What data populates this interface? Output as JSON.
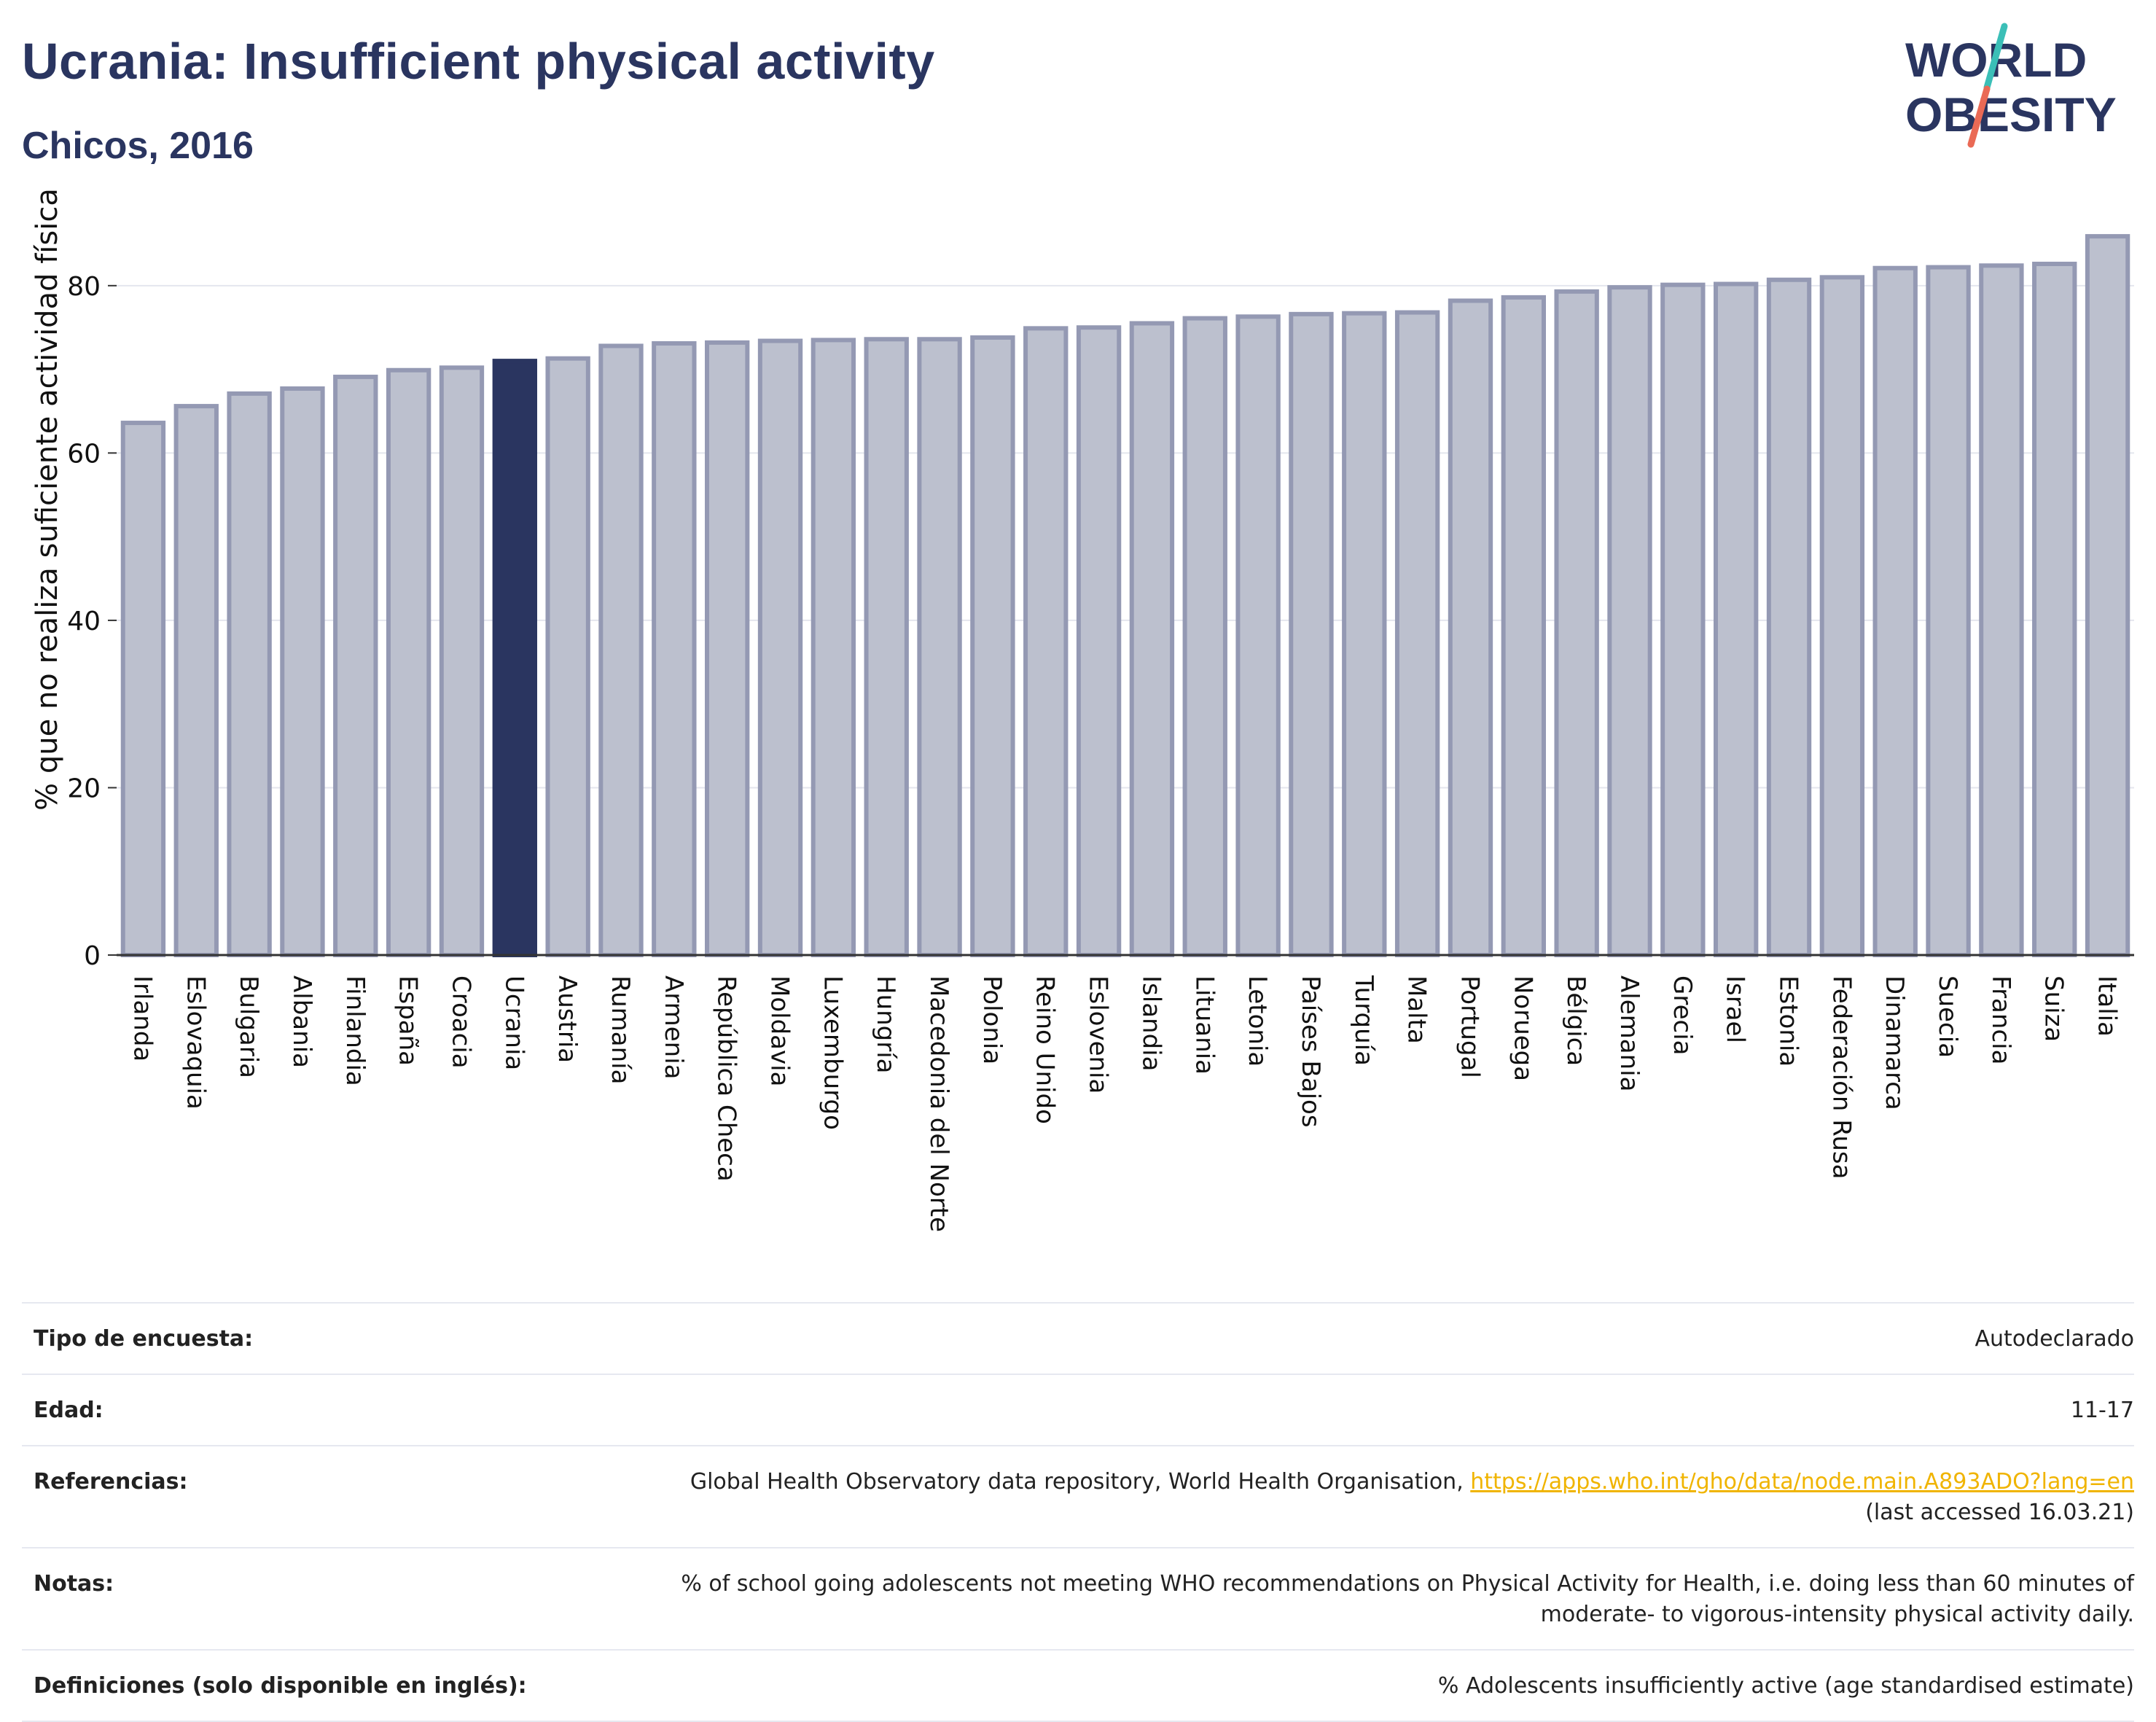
{
  "header": {
    "title": "Ucrania: Insufficient physical activity",
    "subtitle": "Chicos, 2016"
  },
  "logo": {
    "line1": "WORLD",
    "line2": "OBESITY"
  },
  "chart_data": {
    "type": "bar",
    "title": "Ucrania: Insufficient physical activity",
    "subtitle": "Chicos, 2016",
    "ylabel": "% que no realiza suficiente actividad física",
    "xlabel": "",
    "ylim": [
      0,
      88
    ],
    "yticks": [
      0,
      20,
      40,
      60,
      80
    ],
    "grid": true,
    "highlight": "Ucrania",
    "colors": {
      "bar": "#bcc0ce",
      "bar_edge": "#9499b3",
      "highlight": "#2a3560"
    },
    "categories": [
      "Irlanda",
      "Eslovaquia",
      "Bulgaria",
      "Albania",
      "Finlandia",
      "España",
      "Croacia",
      "Ucrania",
      "Austria",
      "Rumanía",
      "Armenia",
      "República Checa",
      "Moldavia",
      "Luxemburgo",
      "Hungría",
      "Macedonia del Norte",
      "Polonia",
      "Reino Unido",
      "Eslovenia",
      "Islandia",
      "Lituania",
      "Letonia",
      "Países Bajos",
      "Turquía",
      "Malta",
      "Portugal",
      "Noruega",
      "Bélgica",
      "Alemania",
      "Grecia",
      "Israel",
      "Estonia",
      "Federación Rusa",
      "Dinamarca",
      "Suecia",
      "Francia",
      "Suiza",
      "Italia"
    ],
    "values": [
      63.6,
      65.6,
      67.1,
      67.7,
      69.1,
      69.9,
      70.2,
      71.0,
      71.3,
      72.8,
      73.1,
      73.2,
      73.4,
      73.5,
      73.6,
      73.6,
      73.8,
      74.9,
      75.0,
      75.5,
      76.1,
      76.3,
      76.6,
      76.7,
      76.8,
      78.2,
      78.6,
      79.3,
      79.8,
      80.1,
      80.2,
      80.7,
      81.0,
      82.1,
      82.2,
      82.4,
      82.6,
      85.9
    ]
  },
  "info": [
    {
      "label": "Tipo de encuesta:",
      "value": "Autodeclarado"
    },
    {
      "label": "Edad:",
      "value": "11-17"
    },
    {
      "label": "Referencias:",
      "value": "Global Health Observatory data repository, World Health Organisation, ",
      "link": "https://apps.who.int/gho/data/node.main.A893ADO?lang=en",
      "value2": "(last accessed 16.03.21)"
    },
    {
      "label": "Notas:",
      "value": "% of school going adolescents not meeting WHO recommendations on Physical Activity for Health, i.e. doing less than 60 minutes of moderate- to vigorous-intensity physical activity daily."
    },
    {
      "label": "Definiciones (solo disponible en inglés):",
      "value": "% Adolescents insufficiently active (age standardised estimate)"
    }
  ]
}
